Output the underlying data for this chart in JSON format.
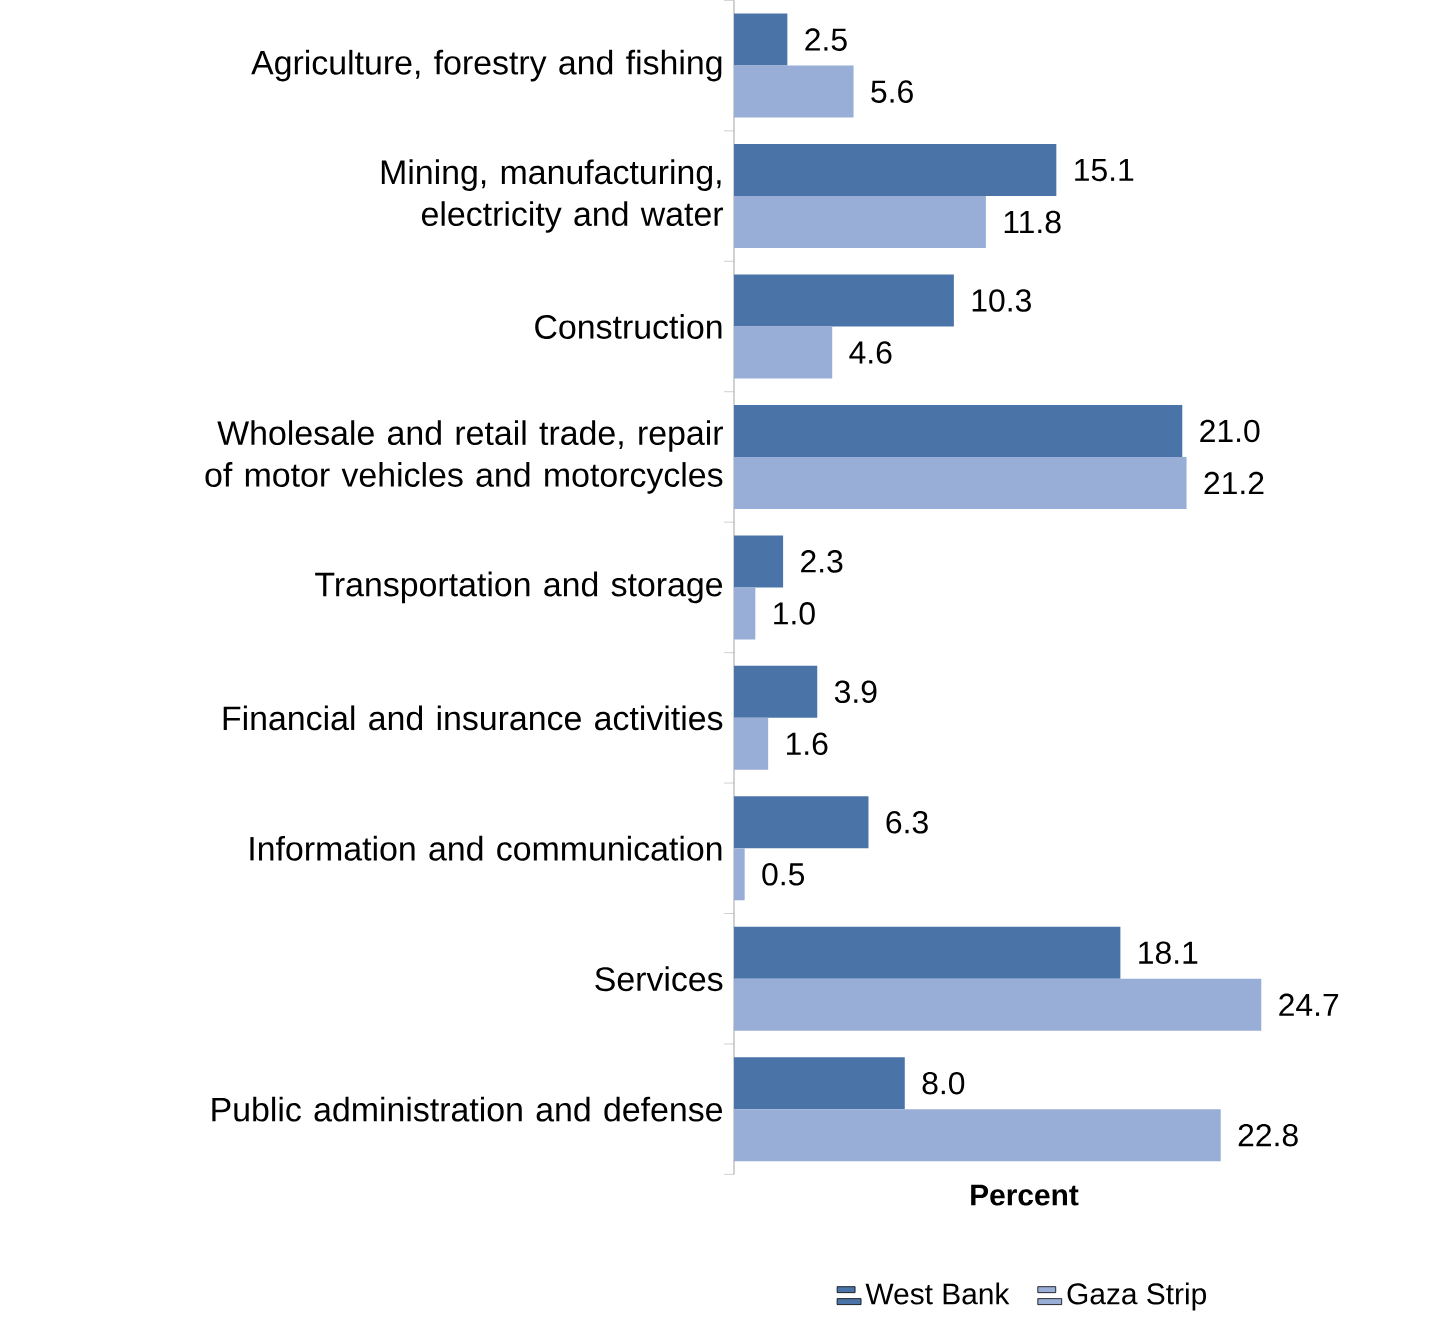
{
  "chart_data": {
    "type": "bar",
    "orientation": "horizontal",
    "xlabel": "Percent",
    "categories": [
      "Agriculture, forestry and fishing",
      "Mining, manufacturing, electricity and water",
      "Construction",
      "Wholesale and retail trade, repair of motor vehicles and motorcycles",
      "Transportation and storage",
      "Financial and insurance activities",
      "Information and communication",
      "Services",
      "Public administration and defense"
    ],
    "series": [
      {
        "name": "West Bank",
        "color": "#4A74A8",
        "values": [
          2.5,
          15.1,
          10.3,
          21.0,
          2.3,
          3.9,
          6.3,
          18.1,
          8.0
        ],
        "value_labels": [
          "2.5",
          "15.1",
          "10.3",
          "21.0",
          "2.3",
          "3.9",
          "6.3",
          "18.1",
          "8.0"
        ]
      },
      {
        "name": "Gaza Strip",
        "color": "#98AED6",
        "values": [
          5.6,
          11.8,
          4.6,
          21.2,
          1.0,
          1.6,
          0.5,
          24.7,
          22.8
        ],
        "value_labels": [
          "5.6",
          "11.8",
          "4.6",
          "21.2",
          "1.0",
          "1.6",
          "0.5",
          "24.7",
          "22.8"
        ]
      }
    ],
    "legend": "bottom",
    "tick_labels": "y"
  }
}
